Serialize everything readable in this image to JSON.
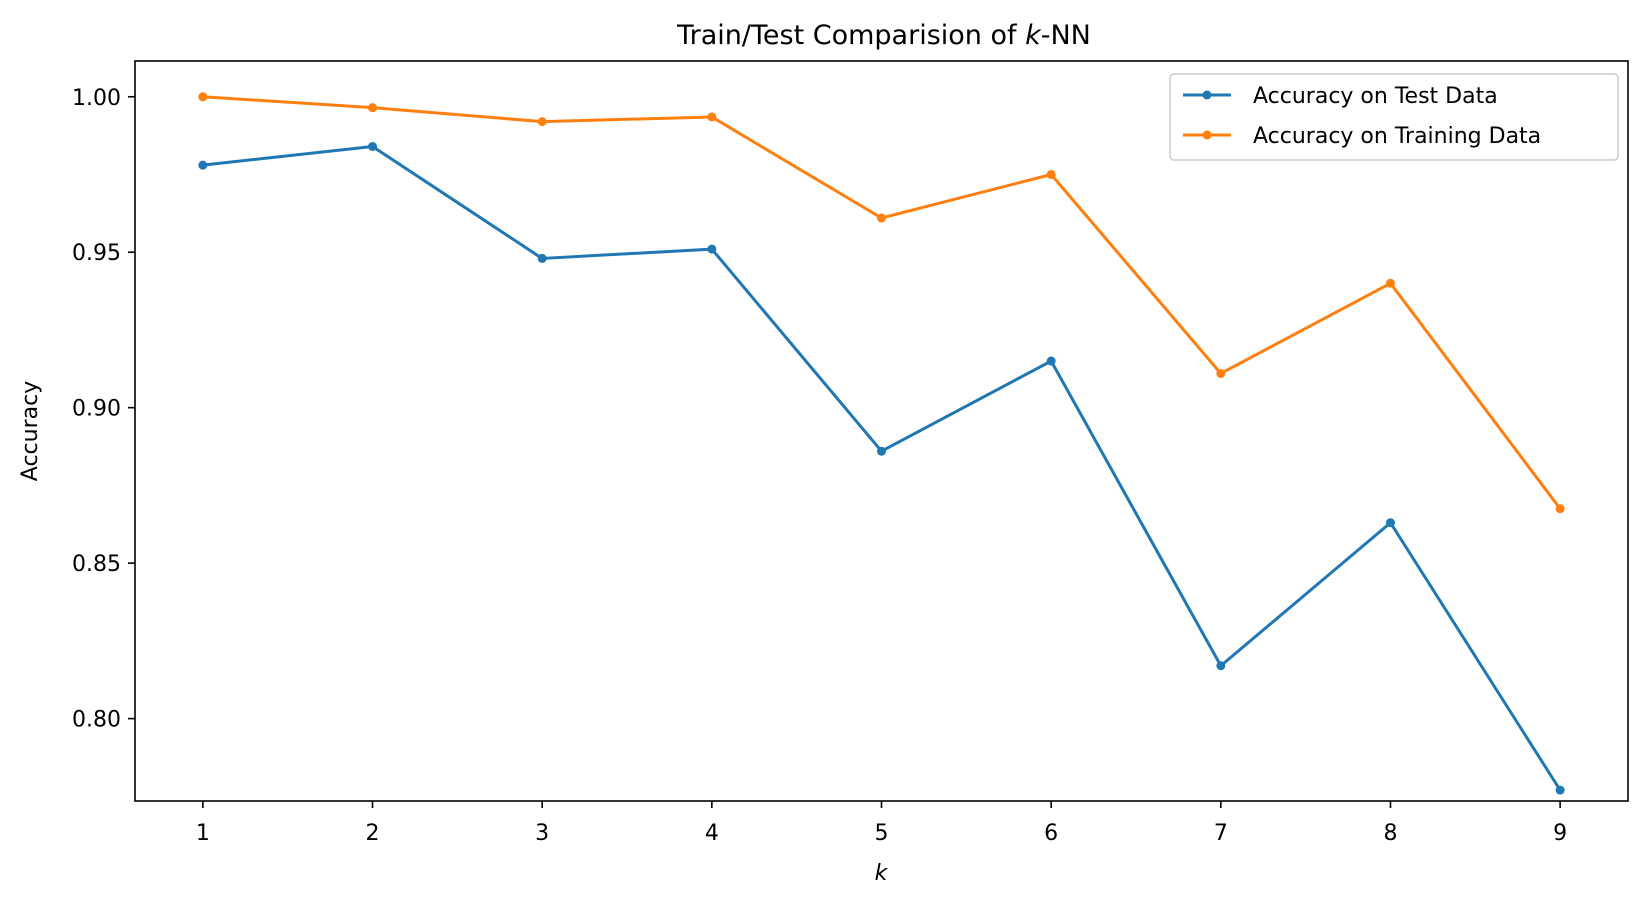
{
  "chart_data": {
    "type": "line",
    "title": "Train/Test Comparision of ",
    "title_italic": "k",
    "title_suffix": "-NN",
    "xlabel": "k",
    "ylabel": "Accuracy",
    "x": [
      1,
      2,
      3,
      4,
      5,
      6,
      7,
      8,
      9
    ],
    "xlim": [
      0.6,
      9.4
    ],
    "ylim": [
      0.7735,
      1.0115
    ],
    "yticks": [
      0.8,
      0.85,
      0.9,
      0.95,
      1.0
    ],
    "ytick_labels": [
      "0.80",
      "0.85",
      "0.90",
      "0.95",
      "1.00"
    ],
    "xtick_labels": [
      "1",
      "2",
      "3",
      "4",
      "5",
      "6",
      "7",
      "8",
      "9"
    ],
    "grid": false,
    "legend_position": "top-right",
    "series": [
      {
        "name": "Accuracy on Test Data",
        "color": "#1f77b4",
        "marker": "circle",
        "values": [
          0.978,
          0.984,
          0.948,
          0.951,
          0.886,
          0.915,
          0.817,
          0.863,
          0.777
        ]
      },
      {
        "name": "Accuracy on Training Data",
        "color": "#ff7f0e",
        "marker": "circle",
        "values": [
          1.0,
          0.9965,
          0.992,
          0.9935,
          0.961,
          0.975,
          0.911,
          0.94,
          0.8675
        ]
      }
    ]
  }
}
